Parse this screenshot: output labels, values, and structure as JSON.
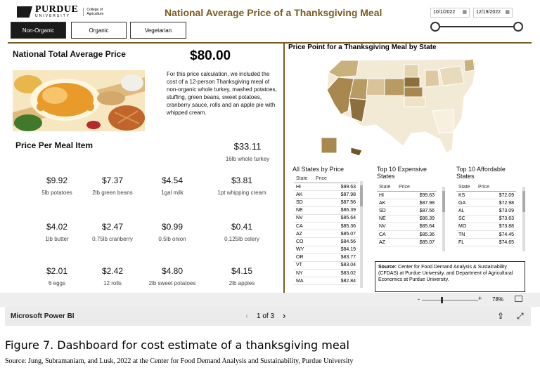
{
  "brand": {
    "name": "PURDUE",
    "sub": "UNIVERSITY",
    "college": "College of Agriculture"
  },
  "title": "National Average Price of a Thanksgiving Meal",
  "tabs": [
    {
      "label": "Non-Organic",
      "active": true
    },
    {
      "label": "Organic"
    },
    {
      "label": "Vegetarian"
    }
  ],
  "date_range": {
    "start": "10/1/2022",
    "end": "12/19/2022"
  },
  "total": {
    "heading": "National Total Average Price",
    "value": "$80.00"
  },
  "description": "For this price calculation, we included the cost of a 12-person Thanksgiving meal of non-organic whole turkey, mashed potatoes, stuffing, green beans, sweet potatoes, cranberry sauce, rolls and an apple pie with whipped cream.",
  "per_item": {
    "heading": "Price Per Meal Item",
    "featured": {
      "value": "$33.11",
      "label": "16lb whole turkey"
    },
    "items": [
      {
        "value": "$9.92",
        "label": "5lb potatoes"
      },
      {
        "value": "$7.37",
        "label": "2lb green beans"
      },
      {
        "value": "$4.54",
        "label": "1gal milk"
      },
      {
        "value": "$3.81",
        "label": "1pt whipping cream"
      },
      {
        "value": "$4.02",
        "label": "1lb butter"
      },
      {
        "value": "$2.47",
        "label": "0.75lb cranberry"
      },
      {
        "value": "$0.99",
        "label": "0.5lb onion"
      },
      {
        "value": "$0.41",
        "label": "0.125lb celery"
      },
      {
        "value": "$2.01",
        "label": "6 eggs"
      },
      {
        "value": "$2.42",
        "label": "12 rolls"
      },
      {
        "value": "$4.80",
        "label": "2lb sweet potatoes"
      },
      {
        "value": "$4.15",
        "label": "2lb apples"
      }
    ]
  },
  "map": {
    "title": "Price Point for a Thanksgiving Meal by State"
  },
  "tables": {
    "col_state": "State",
    "col_price": "Price",
    "all": {
      "title": "All States by Price",
      "rows": [
        [
          "HI",
          "$99.63"
        ],
        [
          "AK",
          "$87.98"
        ],
        [
          "SD",
          "$87.56"
        ],
        [
          "NE",
          "$86.39"
        ],
        [
          "NV",
          "$85.64"
        ],
        [
          "CA",
          "$85.36"
        ],
        [
          "AZ",
          "$85.07"
        ],
        [
          "CO",
          "$84.56"
        ],
        [
          "WY",
          "$84.19"
        ],
        [
          "OR",
          "$83.77"
        ],
        [
          "VT",
          "$83.04"
        ],
        [
          "NY",
          "$83.02"
        ],
        [
          "MA",
          "$82.84"
        ]
      ]
    },
    "expensive": {
      "title": "Top 10 Expensive States",
      "rows": [
        [
          "HI",
          "$99.63"
        ],
        [
          "AK",
          "$87.98"
        ],
        [
          "SD",
          "$87.56"
        ],
        [
          "NE",
          "$86.39"
        ],
        [
          "NV",
          "$85.64"
        ],
        [
          "CA",
          "$85.36"
        ],
        [
          "AZ",
          "$85.07"
        ]
      ]
    },
    "affordable": {
      "title": "Top 10 Affordable States",
      "rows": [
        [
          "KS",
          "$72.09"
        ],
        [
          "GA",
          "$72.98"
        ],
        [
          "AL",
          "$73.09"
        ],
        [
          "SC",
          "$73.63"
        ],
        [
          "MO",
          "$73.88"
        ],
        [
          "TN",
          "$74.45"
        ],
        [
          "FL",
          "$74.65"
        ]
      ]
    }
  },
  "source_box": {
    "label": "Source:",
    "text": "Center for Food Demand Analysis & Sustainability (CFDAS) at Purdue University, and Department of Agricultural Economics at Purdue University."
  },
  "zoom": {
    "minus": "-",
    "plus": "+",
    "value": "78%"
  },
  "footer": {
    "app": "Microsoft Power BI",
    "page": "1 of 3"
  },
  "caption": "Figure 7. Dashboard for cost estimate of a thanksgiving meal",
  "source_line": "Source: Jung, Subramaniam, and Lusk, 2022 at the Center for Food Demand Analysis and Sustainability, Purdue University",
  "colors": {
    "accent": "#7a5c21",
    "map_dark": "#8b6f3d",
    "map_light": "#f3ead6"
  }
}
